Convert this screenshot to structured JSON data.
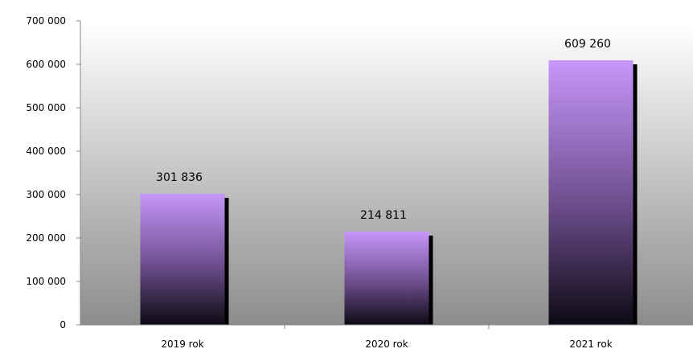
{
  "chart_data": {
    "type": "bar",
    "categories": [
      "2019 rok",
      "2020 rok",
      "2021 rok"
    ],
    "values": [
      301836,
      214811,
      609260
    ],
    "data_labels": [
      "301 836",
      "214 811",
      "609 260"
    ],
    "y_ticks": [
      0,
      100000,
      200000,
      300000,
      400000,
      500000,
      600000,
      700000
    ],
    "y_tick_labels": [
      "0",
      "100 000",
      "200 000",
      "300 000",
      "400 000",
      "500 000",
      "600 000",
      "700 000"
    ],
    "ylim": [
      0,
      700000
    ],
    "grid": false,
    "legend": "none",
    "colors": {
      "bar_top": "#c797fb",
      "bar_bottom": "#0d0a14",
      "bar_shadow": "#000000",
      "plot_bg_top": "#ffffff",
      "plot_bg_bottom": "#8c8c8c",
      "axis": "#888888"
    }
  }
}
